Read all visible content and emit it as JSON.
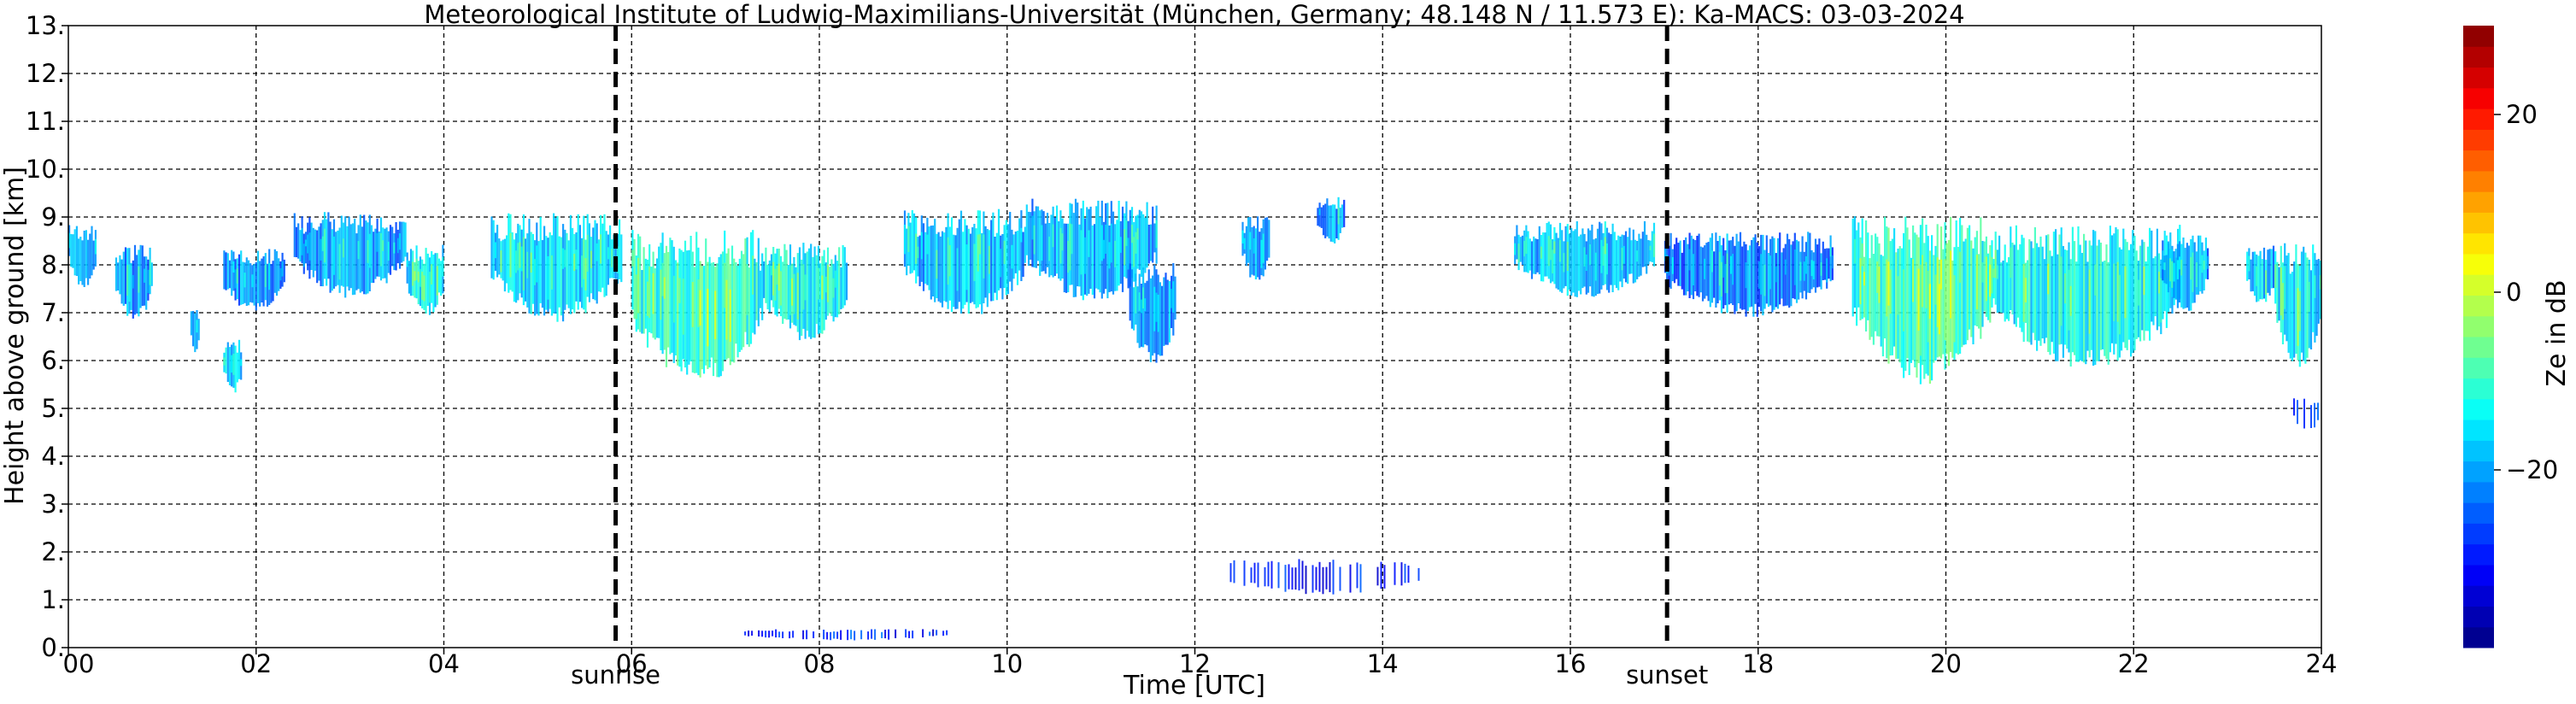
{
  "title": "Meteorological Institute of Ludwig-Maximilians-Universität (München, Germany; 48.148 N / 11.573 E):    Ka-MACS: 03-03-2024",
  "chart_data": {
    "type": "heatmap",
    "title": "Meteorological Institute of Ludwig-Maximilians-Universität (München, Germany; 48.148 N / 11.573 E):    Ka-MACS: 03-03-2024",
    "xlabel": "Time [UTC]",
    "ylabel": "Height above ground [km]",
    "xlim": [
      0,
      24
    ],
    "ylim": [
      0,
      13
    ],
    "x_ticks": [
      0,
      2,
      4,
      6,
      8,
      10,
      12,
      14,
      16,
      18,
      20,
      22,
      24
    ],
    "x_tick_labels": [
      "00",
      "02",
      "04",
      "06",
      "08",
      "10",
      "12",
      "14",
      "16",
      "18",
      "20",
      "22",
      "24"
    ],
    "y_ticks": [
      0,
      1,
      2,
      3,
      4,
      5,
      6,
      7,
      8,
      9,
      10,
      11,
      12,
      13
    ],
    "y_tick_labels": [
      "0.",
      "1.",
      "2.",
      "3.",
      "4.",
      "5.",
      "6.",
      "7.",
      "8.",
      "9.",
      "10.",
      "11.",
      "12.",
      "13."
    ],
    "grid": true,
    "markers": [
      {
        "label": "sunrise",
        "x": 5.83
      },
      {
        "label": "sunset",
        "x": 17.03
      }
    ],
    "colorbar": {
      "label": "Ze in dB",
      "range": [
        -40,
        30
      ],
      "ticks": [
        20,
        0,
        -20
      ],
      "tick_labels": [
        "20",
        "0",
        "−20"
      ],
      "colormap": "jet"
    },
    "echoes": [
      {
        "x0": 0.0,
        "x1": 0.3,
        "base": 7.5,
        "top": 8.9,
        "ze": -22
      },
      {
        "x0": 0.5,
        "x1": 0.9,
        "base": 6.8,
        "top": 8.5,
        "ze": -25
      },
      {
        "x0": 1.3,
        "x1": 1.4,
        "base": 6.1,
        "top": 7.2,
        "ze": -24
      },
      {
        "x0": 1.65,
        "x1": 1.85,
        "base": 5.3,
        "top": 6.5,
        "ze": -20
      },
      {
        "x0": 1.65,
        "x1": 2.3,
        "base": 7.0,
        "top": 8.4,
        "ze": -25
      },
      {
        "x0": 2.4,
        "x1": 3.6,
        "base": 7.3,
        "top": 9.2,
        "ze": -24
      },
      {
        "x0": 3.6,
        "x1": 4.0,
        "base": 6.9,
        "top": 8.5,
        "ze": -18
      },
      {
        "x0": 4.5,
        "x1": 5.9,
        "base": 6.8,
        "top": 9.2,
        "ze": -20
      },
      {
        "x0": 6.0,
        "x1": 7.4,
        "base": 5.5,
        "top": 8.9,
        "ze": -15
      },
      {
        "x0": 7.4,
        "x1": 8.3,
        "base": 6.4,
        "top": 8.6,
        "ze": -17
      },
      {
        "x0": 8.9,
        "x1": 10.2,
        "base": 6.9,
        "top": 9.3,
        "ze": -22
      },
      {
        "x0": 10.2,
        "x1": 11.6,
        "base": 7.2,
        "top": 9.5,
        "ze": -23
      },
      {
        "x0": 11.3,
        "x1": 11.8,
        "base": 5.9,
        "top": 8.2,
        "ze": -24
      },
      {
        "x0": 12.5,
        "x1": 12.8,
        "base": 7.6,
        "top": 9.1,
        "ze": -24
      },
      {
        "x0": 13.3,
        "x1": 13.6,
        "base": 8.4,
        "top": 9.5,
        "ze": -25
      },
      {
        "x0": 15.4,
        "x1": 16.9,
        "base": 7.3,
        "top": 9.0,
        "ze": -22
      },
      {
        "x0": 17.0,
        "x1": 18.8,
        "base": 6.9,
        "top": 8.8,
        "ze": -26
      },
      {
        "x0": 19.0,
        "x1": 20.5,
        "base": 5.5,
        "top": 9.2,
        "ze": -14
      },
      {
        "x0": 20.5,
        "x1": 22.5,
        "base": 5.8,
        "top": 9.0,
        "ze": -17
      },
      {
        "x0": 22.3,
        "x1": 22.8,
        "base": 7.0,
        "top": 8.7,
        "ze": -24
      },
      {
        "x0": 23.2,
        "x1": 23.5,
        "base": 7.1,
        "top": 8.5,
        "ze": -22
      },
      {
        "x0": 23.5,
        "x1": 24.0,
        "base": 5.8,
        "top": 8.6,
        "ze": -18
      },
      {
        "x0": 23.7,
        "x1": 24.0,
        "base": 4.5,
        "top": 5.3,
        "ze": -28
      },
      {
        "x0": 12.3,
        "x1": 14.4,
        "base": 1.1,
        "top": 1.9,
        "ze": -34
      },
      {
        "x0": 7.2,
        "x1": 9.4,
        "base": 0.15,
        "top": 0.4,
        "ze": -32
      }
    ]
  }
}
